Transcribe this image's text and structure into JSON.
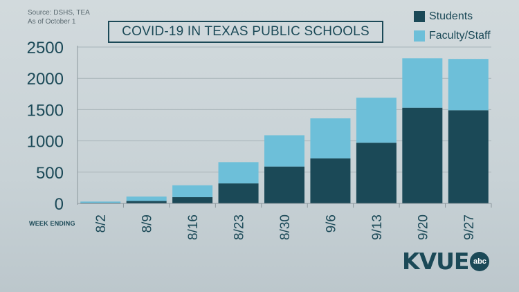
{
  "source_line1": "Source: DSHS, TEA",
  "source_line2": "As of October 1",
  "week_ending_label": "WEEK ENDING",
  "logo": {
    "text": "KVUE",
    "badge": "abc"
  },
  "colors": {
    "students": "#1b4957",
    "faculty": "#6dbfd9",
    "axis_text": "#1b4957",
    "gridline": "#a7b3b8"
  },
  "chart_data": {
    "type": "bar",
    "stacked": true,
    "title": "COVID-19 IN TEXAS PUBLIC SCHOOLS",
    "xlabel": "",
    "ylabel": "",
    "categories": [
      "8/2",
      "8/9",
      "8/16",
      "8/23",
      "8/30",
      "9/6",
      "9/13",
      "9/20",
      "9/27"
    ],
    "series": [
      {
        "name": "Students",
        "values": [
          10,
          40,
          100,
          320,
          590,
          720,
          970,
          1530,
          1490
        ]
      },
      {
        "name": "Faculty/Staff",
        "values": [
          20,
          70,
          190,
          340,
          500,
          640,
          720,
          790,
          820
        ]
      }
    ],
    "yticks": [
      0,
      500,
      1000,
      1500,
      2000,
      2500
    ],
    "ylim": [
      0,
      2500
    ],
    "grid": true,
    "legend": "top-right"
  }
}
